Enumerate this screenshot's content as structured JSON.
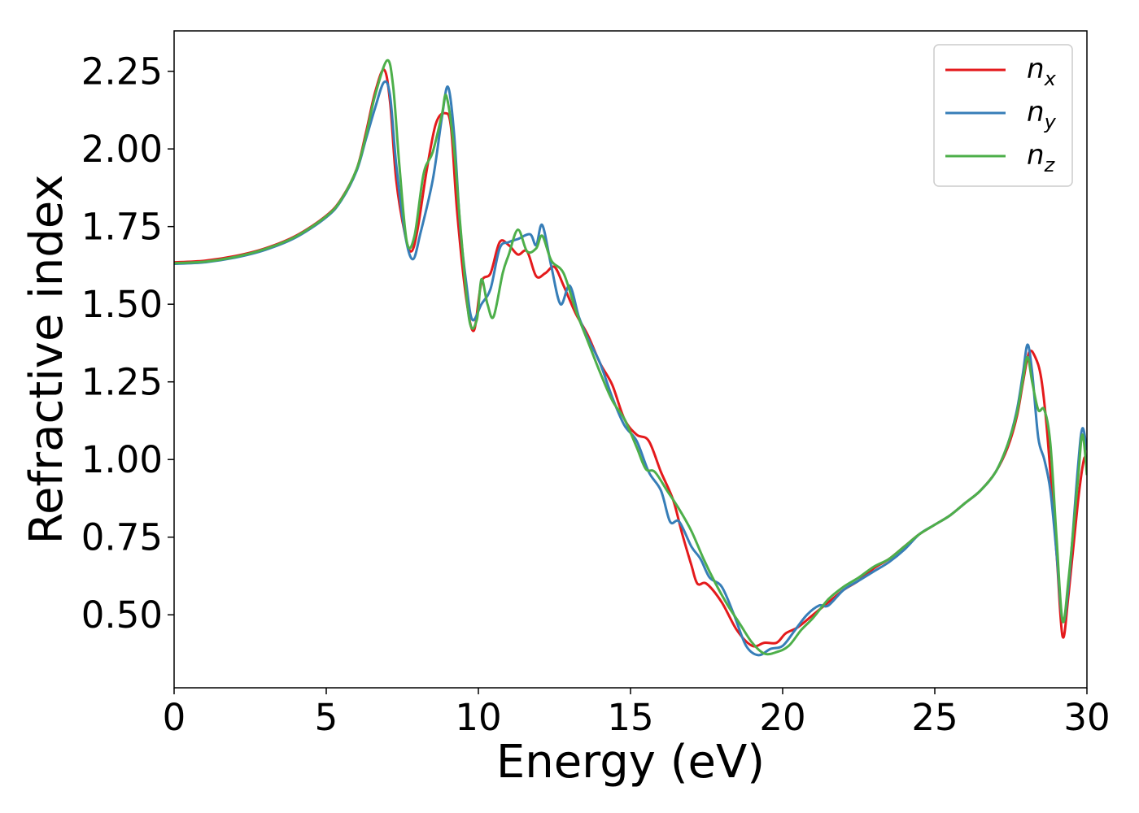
{
  "chart_data": {
    "type": "line",
    "title": "",
    "xlabel": "Energy (eV)",
    "ylabel": "Refractive index",
    "xlim": [
      0,
      30
    ],
    "ylim": [
      0.265,
      2.38
    ],
    "x_ticks": [
      0,
      5,
      10,
      15,
      20,
      25,
      30
    ],
    "x_tick_labels": [
      "0",
      "5",
      "10",
      "15",
      "20",
      "25",
      "30"
    ],
    "y_ticks": [
      0.5,
      0.75,
      1.0,
      1.25,
      1.5,
      1.75,
      2.0,
      2.25
    ],
    "y_tick_labels": [
      "0.50",
      "0.75",
      "1.00",
      "1.25",
      "1.50",
      "1.75",
      "2.00",
      "2.25"
    ],
    "grid": false,
    "legend_position": "top-right",
    "series": [
      {
        "base": "n",
        "sub": "x",
        "color": "#e41a1c",
        "points": [
          [
            0,
            1.635
          ],
          [
            1,
            1.64
          ],
          [
            2,
            1.655
          ],
          [
            3,
            1.68
          ],
          [
            4,
            1.72
          ],
          [
            5,
            1.785
          ],
          [
            5.5,
            1.84
          ],
          [
            6,
            1.935
          ],
          [
            6.3,
            2.05
          ],
          [
            6.6,
            2.18
          ],
          [
            6.9,
            2.255
          ],
          [
            7.1,
            2.15
          ],
          [
            7.3,
            1.9
          ],
          [
            7.6,
            1.72
          ],
          [
            7.8,
            1.67
          ],
          [
            8,
            1.74
          ],
          [
            8.3,
            1.93
          ],
          [
            8.6,
            2.08
          ],
          [
            8.9,
            2.115
          ],
          [
            9.1,
            2.07
          ],
          [
            9.3,
            1.8
          ],
          [
            9.6,
            1.52
          ],
          [
            9.85,
            1.415
          ],
          [
            10.1,
            1.57
          ],
          [
            10.4,
            1.6
          ],
          [
            10.7,
            1.7
          ],
          [
            11,
            1.69
          ],
          [
            11.3,
            1.66
          ],
          [
            11.6,
            1.67
          ],
          [
            11.9,
            1.59
          ],
          [
            12.2,
            1.6
          ],
          [
            12.5,
            1.62
          ],
          [
            12.8,
            1.56
          ],
          [
            13.2,
            1.47
          ],
          [
            13.6,
            1.4
          ],
          [
            14,
            1.31
          ],
          [
            14.4,
            1.24
          ],
          [
            14.8,
            1.13
          ],
          [
            15.2,
            1.08
          ],
          [
            15.6,
            1.06
          ],
          [
            16,
            0.96
          ],
          [
            16.4,
            0.87
          ],
          [
            16.7,
            0.76
          ],
          [
            17,
            0.66
          ],
          [
            17.2,
            0.6
          ],
          [
            17.5,
            0.6
          ],
          [
            18,
            0.54
          ],
          [
            18.5,
            0.45
          ],
          [
            19,
            0.4
          ],
          [
            19.4,
            0.41
          ],
          [
            19.8,
            0.41
          ],
          [
            20.1,
            0.44
          ],
          [
            20.5,
            0.46
          ],
          [
            21,
            0.5
          ],
          [
            21.5,
            0.54
          ],
          [
            22,
            0.58
          ],
          [
            22.5,
            0.61
          ],
          [
            23,
            0.65
          ],
          [
            23.5,
            0.68
          ],
          [
            24,
            0.72
          ],
          [
            24.5,
            0.76
          ],
          [
            25,
            0.79
          ],
          [
            25.5,
            0.82
          ],
          [
            26,
            0.86
          ],
          [
            26.5,
            0.9
          ],
          [
            27,
            0.96
          ],
          [
            27.4,
            1.04
          ],
          [
            27.7,
            1.14
          ],
          [
            27.9,
            1.25
          ],
          [
            28.1,
            1.345
          ],
          [
            28.3,
            1.33
          ],
          [
            28.5,
            1.26
          ],
          [
            28.7,
            1.08
          ],
          [
            29,
            0.7
          ],
          [
            29.2,
            0.43
          ],
          [
            29.4,
            0.57
          ],
          [
            29.7,
            0.86
          ],
          [
            29.9,
            1.0
          ],
          [
            30,
            0.99
          ]
        ]
      },
      {
        "base": "n",
        "sub": "y",
        "color": "#377eb8",
        "points": [
          [
            0,
            1.63
          ],
          [
            1,
            1.635
          ],
          [
            2,
            1.65
          ],
          [
            3,
            1.675
          ],
          [
            4,
            1.715
          ],
          [
            5,
            1.78
          ],
          [
            5.5,
            1.835
          ],
          [
            6,
            1.93
          ],
          [
            6.3,
            2.03
          ],
          [
            6.6,
            2.13
          ],
          [
            6.9,
            2.215
          ],
          [
            7.1,
            2.17
          ],
          [
            7.3,
            1.95
          ],
          [
            7.6,
            1.72
          ],
          [
            7.85,
            1.645
          ],
          [
            8.1,
            1.73
          ],
          [
            8.5,
            1.9
          ],
          [
            8.8,
            2.1
          ],
          [
            9,
            2.2
          ],
          [
            9.2,
            2.05
          ],
          [
            9.4,
            1.75
          ],
          [
            9.6,
            1.57
          ],
          [
            9.8,
            1.45
          ],
          [
            10.1,
            1.5
          ],
          [
            10.4,
            1.55
          ],
          [
            10.7,
            1.68
          ],
          [
            11,
            1.7
          ],
          [
            11.3,
            1.71
          ],
          [
            11.7,
            1.725
          ],
          [
            11.9,
            1.69
          ],
          [
            12.1,
            1.755
          ],
          [
            12.4,
            1.62
          ],
          [
            12.7,
            1.5
          ],
          [
            13,
            1.56
          ],
          [
            13.3,
            1.46
          ],
          [
            13.6,
            1.39
          ],
          [
            14,
            1.31
          ],
          [
            14.4,
            1.2
          ],
          [
            14.8,
            1.11
          ],
          [
            15.2,
            1.06
          ],
          [
            15.6,
            0.96
          ],
          [
            16,
            0.9
          ],
          [
            16.3,
            0.8
          ],
          [
            16.6,
            0.8
          ],
          [
            17,
            0.72
          ],
          [
            17.3,
            0.68
          ],
          [
            17.6,
            0.62
          ],
          [
            18,
            0.59
          ],
          [
            18.4,
            0.5
          ],
          [
            18.8,
            0.4
          ],
          [
            19.2,
            0.37
          ],
          [
            19.6,
            0.39
          ],
          [
            20,
            0.4
          ],
          [
            20.4,
            0.45
          ],
          [
            20.8,
            0.5
          ],
          [
            21.2,
            0.53
          ],
          [
            21.5,
            0.53
          ],
          [
            22,
            0.58
          ],
          [
            22.5,
            0.61
          ],
          [
            23,
            0.64
          ],
          [
            23.5,
            0.67
          ],
          [
            24,
            0.71
          ],
          [
            24.5,
            0.76
          ],
          [
            25,
            0.79
          ],
          [
            25.5,
            0.82
          ],
          [
            26,
            0.86
          ],
          [
            26.5,
            0.9
          ],
          [
            27,
            0.96
          ],
          [
            27.4,
            1.05
          ],
          [
            27.7,
            1.16
          ],
          [
            27.9,
            1.28
          ],
          [
            28.05,
            1.37
          ],
          [
            28.2,
            1.28
          ],
          [
            28.4,
            1.07
          ],
          [
            28.6,
            1.0
          ],
          [
            28.8,
            0.9
          ],
          [
            29,
            0.7
          ],
          [
            29.2,
            0.48
          ],
          [
            29.4,
            0.6
          ],
          [
            29.7,
            0.97
          ],
          [
            29.85,
            1.1
          ],
          [
            30,
            1.03
          ]
        ]
      },
      {
        "base": "n",
        "sub": "z",
        "color": "#4daf4a",
        "points": [
          [
            0,
            1.632
          ],
          [
            1,
            1.637
          ],
          [
            2,
            1.652
          ],
          [
            3,
            1.678
          ],
          [
            4,
            1.718
          ],
          [
            5,
            1.783
          ],
          [
            5.5,
            1.838
          ],
          [
            6,
            1.935
          ],
          [
            6.3,
            2.04
          ],
          [
            6.6,
            2.17
          ],
          [
            7,
            2.285
          ],
          [
            7.2,
            2.2
          ],
          [
            7.4,
            1.95
          ],
          [
            7.65,
            1.7
          ],
          [
            7.9,
            1.72
          ],
          [
            8.2,
            1.92
          ],
          [
            8.5,
            1.99
          ],
          [
            8.8,
            2.11
          ],
          [
            8.95,
            2.17
          ],
          [
            9.2,
            2.0
          ],
          [
            9.4,
            1.76
          ],
          [
            9.7,
            1.45
          ],
          [
            9.95,
            1.45
          ],
          [
            10.1,
            1.58
          ],
          [
            10.3,
            1.5
          ],
          [
            10.5,
            1.46
          ],
          [
            10.8,
            1.6
          ],
          [
            11,
            1.66
          ],
          [
            11.3,
            1.74
          ],
          [
            11.6,
            1.67
          ],
          [
            11.9,
            1.68
          ],
          [
            12.1,
            1.72
          ],
          [
            12.4,
            1.64
          ],
          [
            12.8,
            1.6
          ],
          [
            13.2,
            1.48
          ],
          [
            13.6,
            1.38
          ],
          [
            14,
            1.28
          ],
          [
            14.4,
            1.19
          ],
          [
            14.8,
            1.13
          ],
          [
            15.2,
            1.04
          ],
          [
            15.5,
            0.97
          ],
          [
            15.8,
            0.96
          ],
          [
            16.2,
            0.9
          ],
          [
            16.6,
            0.84
          ],
          [
            17,
            0.77
          ],
          [
            17.4,
            0.68
          ],
          [
            17.8,
            0.6
          ],
          [
            18.2,
            0.53
          ],
          [
            18.6,
            0.47
          ],
          [
            19,
            0.41
          ],
          [
            19.4,
            0.375
          ],
          [
            19.8,
            0.38
          ],
          [
            20.2,
            0.4
          ],
          [
            20.6,
            0.45
          ],
          [
            21,
            0.49
          ],
          [
            21.5,
            0.55
          ],
          [
            22,
            0.59
          ],
          [
            22.5,
            0.62
          ],
          [
            23,
            0.655
          ],
          [
            23.5,
            0.68
          ],
          [
            24,
            0.72
          ],
          [
            24.5,
            0.76
          ],
          [
            25,
            0.79
          ],
          [
            25.5,
            0.82
          ],
          [
            26,
            0.86
          ],
          [
            26.5,
            0.9
          ],
          [
            27,
            0.96
          ],
          [
            27.4,
            1.05
          ],
          [
            27.7,
            1.15
          ],
          [
            27.9,
            1.26
          ],
          [
            28.05,
            1.33
          ],
          [
            28.2,
            1.25
          ],
          [
            28.4,
            1.16
          ],
          [
            28.6,
            1.16
          ],
          [
            28.8,
            1.05
          ],
          [
            29,
            0.75
          ],
          [
            29.2,
            0.48
          ],
          [
            29.4,
            0.62
          ],
          [
            29.7,
            0.93
          ],
          [
            29.85,
            1.08
          ],
          [
            30,
            0.95
          ]
        ]
      }
    ]
  }
}
